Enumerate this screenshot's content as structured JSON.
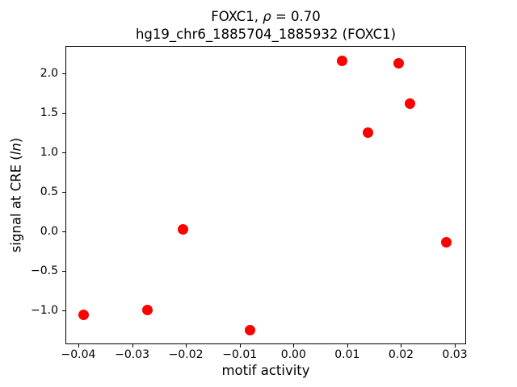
{
  "figure": {
    "background": "#ffffff",
    "axes_color": "#000000"
  },
  "chart_data": {
    "type": "scatter",
    "title": {
      "line1_prefix": "FOXC1, ",
      "line1_rho": "ρ",
      "line1_suffix": " = 0.70",
      "line2": "hg19_chr6_1885704_1885932 (FOXC1)"
    },
    "xlabel": "motif activity",
    "ylabel": {
      "prefix": "signal at CRE (",
      "italic": "ln",
      "suffix": ")"
    },
    "xlim": [
      -0.0424,
      0.0321
    ],
    "ylim": [
      -1.43,
      2.35
    ],
    "grid": false,
    "legend": false,
    "x_ticks": [
      {
        "value": -0.04,
        "label": "−0.04"
      },
      {
        "value": -0.03,
        "label": "−0.03"
      },
      {
        "value": -0.02,
        "label": "−0.02"
      },
      {
        "value": -0.01,
        "label": "−0.01"
      },
      {
        "value": 0.0,
        "label": "0.00"
      },
      {
        "value": 0.01,
        "label": "0.01"
      },
      {
        "value": 0.02,
        "label": "0.02"
      },
      {
        "value": 0.03,
        "label": "0.03"
      }
    ],
    "y_ticks": [
      {
        "value": 2.0,
        "label": "2.0"
      },
      {
        "value": 1.5,
        "label": "1.5"
      },
      {
        "value": 1.0,
        "label": "1.0"
      },
      {
        "value": 0.5,
        "label": "0.5"
      },
      {
        "value": 0.0,
        "label": "0.0"
      },
      {
        "value": -0.5,
        "label": "−0.5"
      },
      {
        "value": -1.0,
        "label": "−1.0"
      }
    ],
    "series": [
      {
        "marker": "circle",
        "color": "#ff0000",
        "points": [
          {
            "x": 0.009,
            "y": 2.16
          },
          {
            "x": 0.0196,
            "y": 2.13
          },
          {
            "x": 0.0216,
            "y": 1.62
          },
          {
            "x": 0.0139,
            "y": 1.25
          },
          {
            "x": -0.0205,
            "y": 0.03
          },
          {
            "x": 0.0284,
            "y": -0.14
          },
          {
            "x": -0.039,
            "y": -1.06
          },
          {
            "x": -0.0272,
            "y": -1.0
          },
          {
            "x": -0.0081,
            "y": -1.25
          }
        ]
      }
    ]
  }
}
